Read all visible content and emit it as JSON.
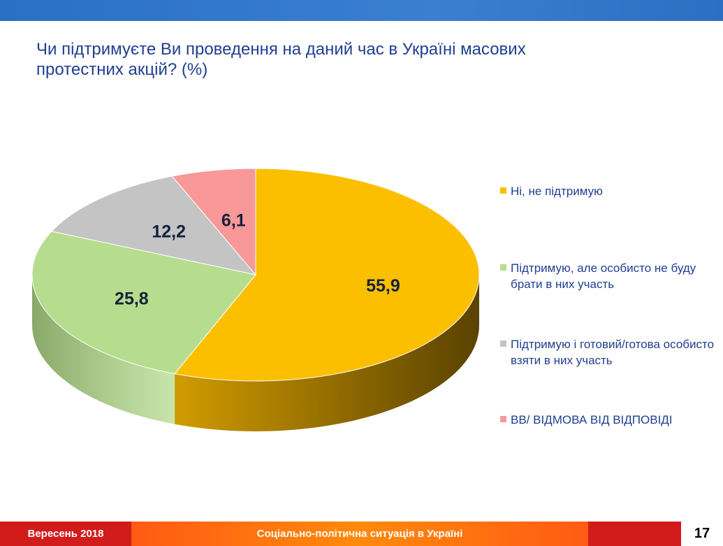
{
  "header": {
    "title": "Чи підтримуєте Ви проведення на даний час в Україні масових протестних акцій? (%)"
  },
  "chart_data": {
    "type": "pie",
    "title": "Чи підтримуєте Ви проведення на даний час в Україні масових протестних акцій? (%)",
    "labels": [
      "Ні, не підтримую",
      "Підтримую, але особисто не буду брати в них участь",
      "Підтримую і готовий/готова особисто взяти в них участь",
      "ВВ/ ВІДМОВА ВІД ВІДПОВІДІ"
    ],
    "values": [
      55.9,
      25.8,
      12.2,
      6.1
    ],
    "value_labels": [
      "55,9",
      "25,8",
      "12,2",
      "6,1"
    ],
    "colors": [
      "#fbbf00",
      "#b6dd8d",
      "#c4c4c4",
      "#f99898"
    ],
    "side_colors": [
      "#b07f00",
      "#8aa86a",
      "#8f8f8f",
      "#c06f6f"
    ],
    "style": "3d",
    "legend_position": "right"
  },
  "legend": {
    "items": [
      {
        "label": "Ні, не підтримую",
        "color": "#fbbf00"
      },
      {
        "label": "Підтримую, але особисто не буду брати в них участь",
        "color": "#b6dd8d"
      },
      {
        "label": "Підтримую і готовий/готова особисто взяти в них участь",
        "color": "#c4c4c4"
      },
      {
        "label": "ВВ/ ВІДМОВА ВІД ВІДПОВІДІ",
        "color": "#f99898"
      }
    ]
  },
  "footer": {
    "date": "Вересень 2018",
    "caption": "Соціально-політична ситуація в Україні",
    "page": "17"
  }
}
